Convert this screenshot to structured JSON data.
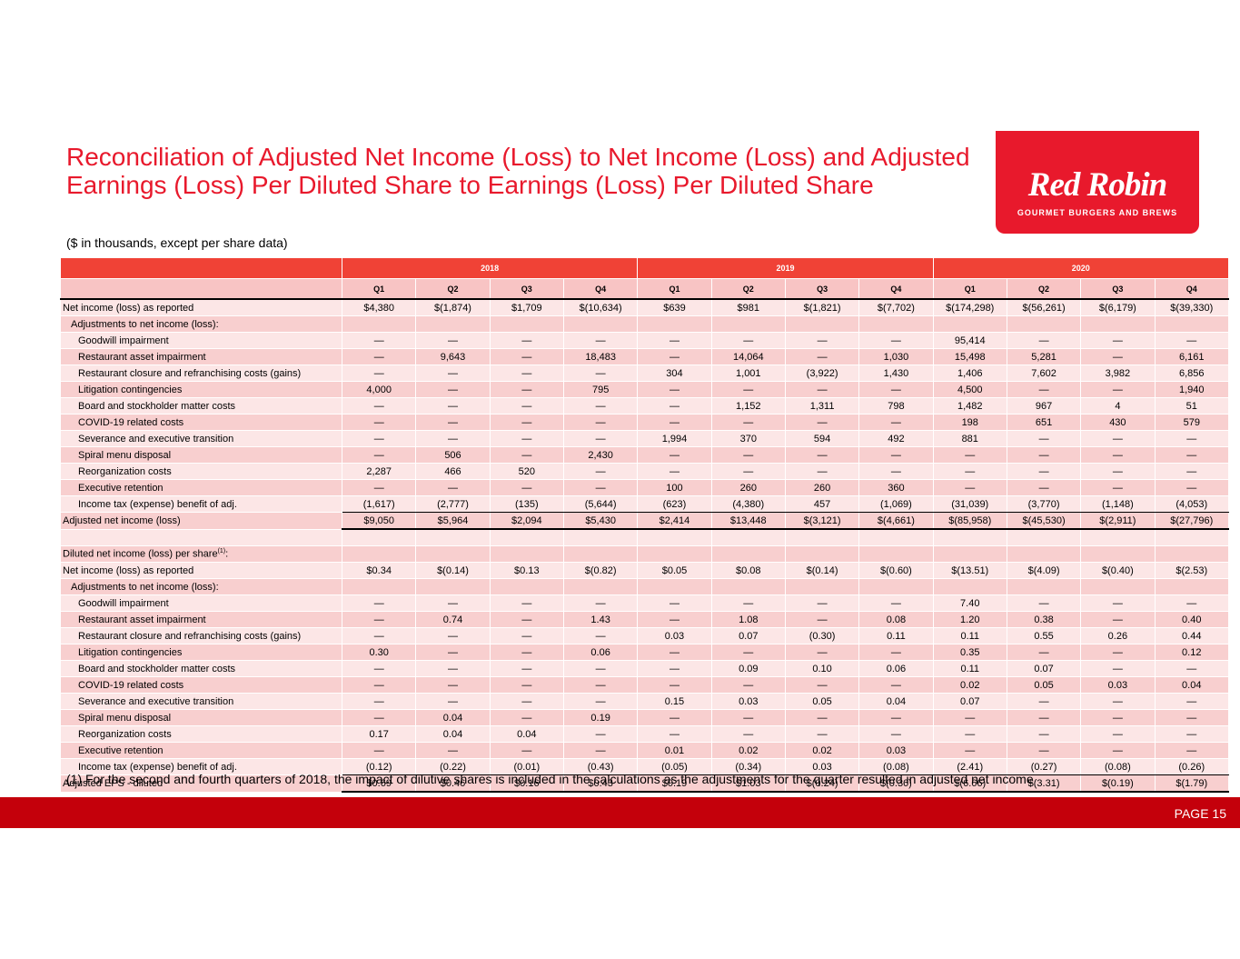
{
  "title": "Reconciliation of Adjusted Net Income (Loss) to Net Income (Loss) and Adjusted Earnings (Loss) Per Diluted Share to Earnings (Loss) Per Diluted Share",
  "subtitle": "($ in thousands, except per share data)",
  "logo": {
    "wordmark": "Red Robin",
    "tagline": "GOURMET BURGERS AND BREWS",
    "color": "#e8192c"
  },
  "years": [
    "2018",
    "2019",
    "2020"
  ],
  "quarters": [
    "Q1",
    "Q2",
    "Q3",
    "Q4",
    "Q1",
    "Q2",
    "Q3",
    "Q4",
    "Q1",
    "Q2",
    "Q3",
    "Q4"
  ],
  "section1": [
    {
      "label": "Net income (loss) as reported",
      "level": 0,
      "values": [
        "$4,380",
        "$(1,874)",
        "$1,709",
        "$(10,634)",
        "$639",
        "$981",
        "$(1,821)",
        "$(7,702)",
        "$(174,298)",
        "$(56,261)",
        "$(6,179)",
        "$(39,330)"
      ]
    },
    {
      "label": "Adjustments to net income (loss):",
      "level": 1,
      "values": []
    },
    {
      "label": "Goodwill impairment",
      "level": 2,
      "values": [
        "—",
        "—",
        "—",
        "—",
        "—",
        "—",
        "—",
        "—",
        "95,414",
        "—",
        "—",
        "—"
      ]
    },
    {
      "label": "Restaurant asset impairment",
      "level": 2,
      "values": [
        "—",
        "9,643",
        "—",
        "18,483",
        "—",
        "14,064",
        "—",
        "1,030",
        "15,498",
        "5,281",
        "—",
        "6,161"
      ]
    },
    {
      "label": "Restaurant closure and refranchising costs (gains)",
      "level": 2,
      "values": [
        "—",
        "—",
        "—",
        "—",
        "304",
        "1,001",
        "(3,922)",
        "1,430",
        "1,406",
        "7,602",
        "3,982",
        "6,856"
      ]
    },
    {
      "label": "Litigation contingencies",
      "level": 2,
      "values": [
        "4,000",
        "—",
        "—",
        "795",
        "—",
        "—",
        "—",
        "—",
        "4,500",
        "—",
        "—",
        "1,940"
      ]
    },
    {
      "label": "Board and stockholder matter costs",
      "level": 2,
      "values": [
        "—",
        "—",
        "—",
        "—",
        "—",
        "1,152",
        "1,311",
        "798",
        "1,482",
        "967",
        "4",
        "51"
      ]
    },
    {
      "label": "COVID-19 related costs",
      "level": 2,
      "values": [
        "—",
        "—",
        "—",
        "—",
        "—",
        "—",
        "—",
        "—",
        "198",
        "651",
        "430",
        "579"
      ]
    },
    {
      "label": "Severance and executive transition",
      "level": 2,
      "values": [
        "—",
        "—",
        "—",
        "—",
        "1,994",
        "370",
        "594",
        "492",
        "881",
        "—",
        "—",
        "—"
      ]
    },
    {
      "label": "Spiral menu disposal",
      "level": 2,
      "values": [
        "—",
        "506",
        "—",
        "2,430",
        "—",
        "—",
        "—",
        "—",
        "—",
        "—",
        "—",
        "—"
      ]
    },
    {
      "label": "Reorganization costs",
      "level": 2,
      "values": [
        "2,287",
        "466",
        "520",
        "—",
        "—",
        "—",
        "—",
        "—",
        "—",
        "—",
        "—",
        "—"
      ]
    },
    {
      "label": "Executive retention",
      "level": 2,
      "values": [
        "—",
        "—",
        "—",
        "—",
        "100",
        "260",
        "260",
        "360",
        "—",
        "—",
        "—",
        "—"
      ]
    },
    {
      "label": "Income tax (expense) benefit of adj.",
      "level": 2,
      "values": [
        "(1,617)",
        "(2,777)",
        "(135)",
        "(5,644)",
        "(623)",
        "(4,380)",
        "457",
        "(1,069)",
        "(31,039)",
        "(3,770)",
        "(1,148)",
        "(4,053)"
      ]
    },
    {
      "label": "Adjusted net income (loss)",
      "level": 0,
      "values": [
        "$9,050",
        "$5,964",
        "$2,094",
        "$5,430",
        "$2,414",
        "$13,448",
        "$(3,121)",
        "$(4,661)",
        "$(85,958)",
        "$(45,530)",
        "$(2,911)",
        "$(27,796)"
      ]
    }
  ],
  "eps_header_label": "Diluted net income (loss) per share",
  "eps_header_sup": "(1)",
  "eps_header_suffix": ":",
  "section2": [
    {
      "label": "Net income (loss) as reported",
      "level": 0,
      "values": [
        "$0.34",
        "$(0.14)",
        "$0.13",
        "$(0.82)",
        "$0.05",
        "$0.08",
        "$(0.14)",
        "$(0.60)",
        "$(13.51)",
        "$(4.09)",
        "$(0.40)",
        "$(2.53)"
      ]
    },
    {
      "label": "Adjustments to net income (loss):",
      "level": 1,
      "values": []
    },
    {
      "label": "Goodwill impairment",
      "level": 2,
      "values": [
        "—",
        "—",
        "—",
        "—",
        "—",
        "—",
        "—",
        "—",
        "7.40",
        "—",
        "—",
        "—"
      ]
    },
    {
      "label": "Restaurant asset impairment",
      "level": 2,
      "values": [
        "—",
        "0.74",
        "—",
        "1.43",
        "—",
        "1.08",
        "—",
        "0.08",
        "1.20",
        "0.38",
        "—",
        "0.40"
      ]
    },
    {
      "label": "Restaurant closure and refranchising costs (gains)",
      "level": 2,
      "values": [
        "—",
        "—",
        "—",
        "—",
        "0.03",
        "0.07",
        "(0.30)",
        "0.11",
        "0.11",
        "0.55",
        "0.26",
        "0.44"
      ]
    },
    {
      "label": "Litigation contingencies",
      "level": 2,
      "values": [
        "0.30",
        "—",
        "—",
        "0.06",
        "—",
        "—",
        "—",
        "—",
        "0.35",
        "—",
        "—",
        "0.12"
      ]
    },
    {
      "label": "Board and stockholder matter costs",
      "level": 2,
      "values": [
        "—",
        "—",
        "—",
        "—",
        "—",
        "0.09",
        "0.10",
        "0.06",
        "0.11",
        "0.07",
        "—",
        "—"
      ]
    },
    {
      "label": "COVID-19 related costs",
      "level": 2,
      "values": [
        "—",
        "—",
        "—",
        "—",
        "—",
        "—",
        "—",
        "—",
        "0.02",
        "0.05",
        "0.03",
        "0.04"
      ]
    },
    {
      "label": "Severance and executive transition",
      "level": 2,
      "values": [
        "—",
        "—",
        "—",
        "—",
        "0.15",
        "0.03",
        "0.05",
        "0.04",
        "0.07",
        "—",
        "—",
        "—"
      ]
    },
    {
      "label": "Spiral menu disposal",
      "level": 2,
      "values": [
        "—",
        "0.04",
        "—",
        "0.19",
        "—",
        "—",
        "—",
        "—",
        "—",
        "—",
        "—",
        "—"
      ]
    },
    {
      "label": "Reorganization costs",
      "level": 2,
      "values": [
        "0.17",
        "0.04",
        "0.04",
        "—",
        "—",
        "—",
        "—",
        "—",
        "—",
        "—",
        "—",
        "—"
      ]
    },
    {
      "label": "Executive retention",
      "level": 2,
      "values": [
        "—",
        "—",
        "—",
        "—",
        "0.01",
        "0.02",
        "0.02",
        "0.03",
        "—",
        "—",
        "—",
        "—"
      ]
    },
    {
      "label": "Income tax (expense) benefit of adj.",
      "level": 2,
      "values": [
        "(0.12)",
        "(0.22)",
        "(0.01)",
        "(0.43)",
        "(0.05)",
        "(0.34)",
        "0.03",
        "(0.08)",
        "(2.41)",
        "(0.27)",
        "(0.08)",
        "(0.26)"
      ]
    },
    {
      "label": "Adjusted EPS - diluted",
      "level": 0,
      "values": [
        "$0.69",
        "$0.46",
        "$0.16",
        "$0.43",
        "$0.19",
        "$1.03",
        "$(0.24)",
        "$(0.36)",
        "$(6.66)",
        "$(3.31)",
        "$(0.19)",
        "$(1.79)"
      ]
    }
  ],
  "footnote": "(1) For the second and fourth quarters of 2018, the impact of dilutive shares is included in the calculations as the adjustments for the quarter resulted in adjusted net income",
  "footer": {
    "page": "PAGE 15",
    "color": "#c4000b"
  }
}
